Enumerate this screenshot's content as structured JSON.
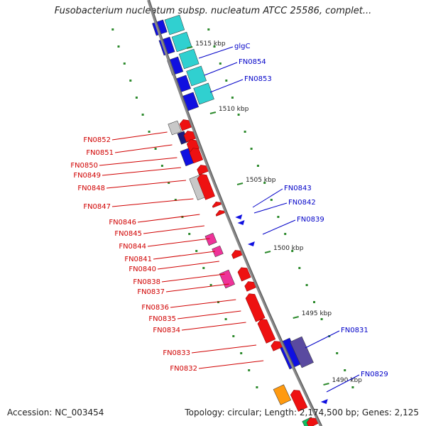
{
  "title": "Fusobacterium nucleatum subsp. nucleatum ATCC 25586, complet...",
  "footer": {
    "accession": "Accession: NC_003454",
    "topology": "Topology: circular; Length: 2,174,500 bp; Genes: 2,125"
  },
  "colors": {
    "backbone": "#888888",
    "forward_label": "#0000c8",
    "reverse_label": "#d00000",
    "tick": "#2d8a2d",
    "cyan": "#30d0d0",
    "blue": "#1010e0",
    "navy": "#5a4aa0",
    "red": "#ee1111",
    "gray": "#c8c8c8",
    "pink": "#ee3399",
    "orange": "#ff9a10",
    "green": "#10c060"
  },
  "ticks": [
    "1515 kbp",
    "1510 kbp",
    "1505 kbp",
    "1500 kbp",
    "1495 kbp",
    "1490 kbp"
  ],
  "forward_genes": [
    "glgC",
    "FN0854",
    "FN0853",
    "FN0843",
    "FN0842",
    "FN0839",
    "FN0831",
    "FN0829"
  ],
  "reverse_genes": [
    "FN0852",
    "FN0851",
    "FN0850",
    "FN0849",
    "FN0848",
    "FN0847",
    "FN0846",
    "FN0845",
    "FN0844",
    "FN0841",
    "FN0840",
    "FN0838",
    "FN0837",
    "FN0836",
    "FN0835",
    "FN0834",
    "FN0833",
    "FN0832"
  ]
}
